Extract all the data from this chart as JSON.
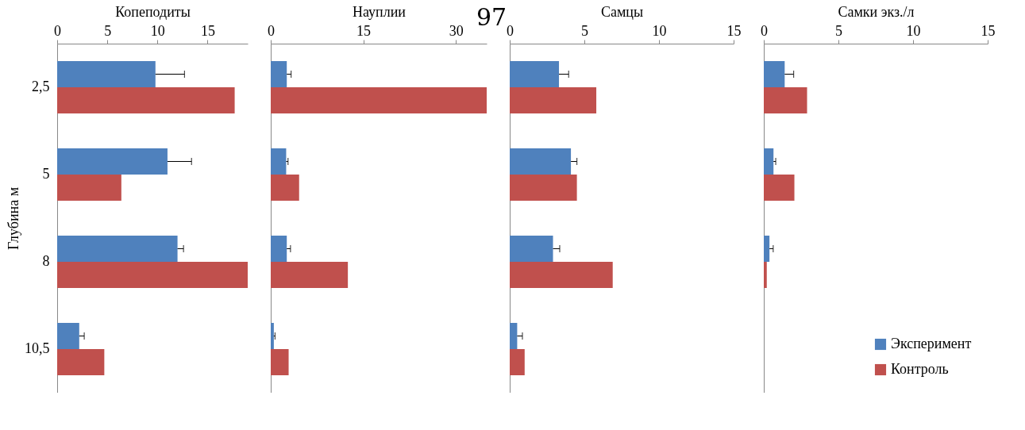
{
  "chart_data": [
    {
      "type": "bar",
      "orientation": "horizontal",
      "xlabel": "Копеподиты",
      "ylabel": "Глубина м",
      "categories": [
        "2,5",
        "5",
        "8",
        "10,5"
      ],
      "xlim": [
        0,
        19
      ],
      "xticks": [
        0,
        5,
        10,
        15
      ],
      "grid": false,
      "legend": false,
      "series": [
        {
          "color": "#4f81bd",
          "values": [
            9.8,
            11.0,
            12.0,
            2.2
          ],
          "errors": [
            2.9,
            2.4,
            0.6,
            0.5
          ]
        },
        {
          "color": "#c0504d",
          "values": [
            17.7,
            6.4,
            19,
            4.7
          ]
        }
      ]
    },
    {
      "type": "bar",
      "orientation": "horizontal",
      "xlabel": "Науплии",
      "categories": [
        "2,5",
        "5",
        "8",
        "10,5"
      ],
      "xlim": [
        0,
        35
      ],
      "xticks": [
        0,
        15,
        30
      ],
      "grid": false,
      "legend": false,
      "tick_labels": "x",
      "annotations": [
        "97"
      ],
      "series": [
        {
          "color": "#4f81bd",
          "values": [
            2.6,
            2.5,
            2.6,
            0.5
          ],
          "errors": [
            0.7,
            0.3,
            0.6,
            0.2
          ]
        },
        {
          "color": "#c0504d",
          "values": [
            35,
            4.6,
            12.5,
            2.9
          ]
        }
      ]
    },
    {
      "type": "bar",
      "orientation": "horizontal",
      "xlabel": "Самцы",
      "categories": [
        "2,5",
        "5",
        "8",
        "10,5"
      ],
      "xlim": [
        0,
        15
      ],
      "xticks": [
        0,
        5,
        10,
        15
      ],
      "grid": false,
      "legend": false,
      "tick_labels": "x",
      "series": [
        {
          "color": "#4f81bd",
          "values": [
            3.3,
            4.1,
            2.9,
            0.5
          ],
          "errors": [
            0.65,
            0.4,
            0.45,
            0.35
          ]
        },
        {
          "color": "#c0504d",
          "values": [
            5.8,
            4.5,
            6.9,
            1.0
          ]
        }
      ]
    },
    {
      "type": "bar",
      "orientation": "horizontal",
      "xlabel": "Самки   экз./л",
      "categories": [
        "2,5",
        "5",
        "8",
        "10,5"
      ],
      "xlim": [
        0,
        15
      ],
      "xticks": [
        0,
        5,
        10,
        15
      ],
      "grid": false,
      "legend": "bottom right",
      "tick_labels": "x",
      "series": [
        {
          "name": "Эксперимент",
          "color": "#4f81bd",
          "values": [
            1.4,
            0.65,
            0.38,
            0
          ],
          "errors": [
            0.6,
            0.15,
            0.25,
            null
          ]
        },
        {
          "name": "Контроль",
          "color": "#c0504d",
          "values": [
            2.9,
            2.05,
            0.2,
            0
          ]
        }
      ]
    }
  ]
}
